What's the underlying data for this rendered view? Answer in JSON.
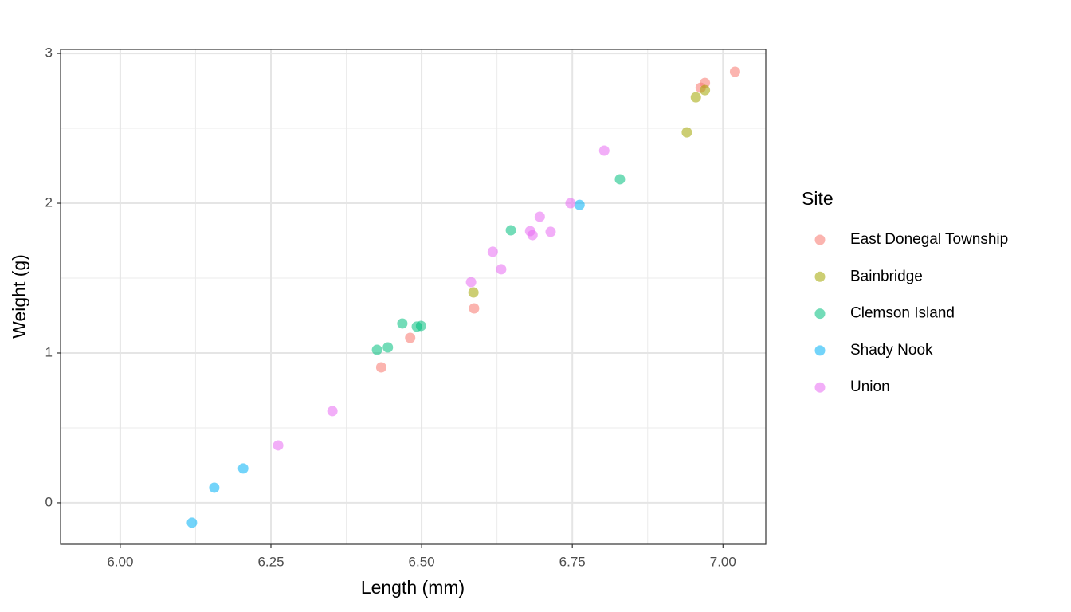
{
  "chart_data": {
    "type": "scatter",
    "x_label": "Length (mm)",
    "y_label": "Weight (g)",
    "legend_title": "Site",
    "legend_position": "right",
    "grid": true,
    "point_alpha": 0.55,
    "xlim": [
      5.901,
      7.071
    ],
    "ylim": [
      -0.277,
      3.027
    ],
    "xticks": [
      {
        "value": 6,
        "label": "6.00"
      },
      {
        "value": 6.25,
        "label": "6.25"
      },
      {
        "value": 6.5,
        "label": "6.50"
      },
      {
        "value": 6.75,
        "label": "6.75"
      },
      {
        "value": 7,
        "label": "7.00"
      }
    ],
    "yticks": [
      0,
      1,
      2,
      3
    ],
    "series": [
      {
        "name": "East Donegal Township",
        "color": "#F8766D",
        "x": [
          7.02,
          6.97,
          6.963,
          6.587,
          6.481,
          6.433
        ],
        "values": [
          2.878,
          2.803,
          2.771,
          1.298,
          1.101,
          0.904
        ]
      },
      {
        "name": "Bainbridge",
        "color": "#A3A500",
        "x": [
          6.97,
          6.955,
          6.94,
          6.586
        ],
        "values": [
          2.755,
          2.707,
          2.473,
          1.404
        ]
      },
      {
        "name": "Clemson Island",
        "color": "#00BF7D",
        "x": [
          6.829,
          6.648,
          6.468,
          6.499,
          6.492,
          6.444,
          6.426
        ],
        "values": [
          2.16,
          1.819,
          1.197,
          1.181,
          1.176,
          1.037,
          1.021
        ]
      },
      {
        "name": "Shady Nook",
        "color": "#00B0F6",
        "x": [
          6.762,
          6.204,
          6.156,
          6.119
        ],
        "values": [
          1.989,
          0.229,
          0.101,
          -0.133
        ]
      },
      {
        "name": "Union",
        "color": "#E76BF3",
        "x": [
          6.803,
          6.747,
          6.696,
          6.68,
          6.684,
          6.714,
          6.618,
          6.632,
          6.582,
          6.352,
          6.262
        ],
        "values": [
          2.351,
          2.0,
          1.91,
          1.814,
          1.787,
          1.809,
          1.676,
          1.559,
          1.473,
          0.612,
          0.383
        ]
      }
    ]
  }
}
